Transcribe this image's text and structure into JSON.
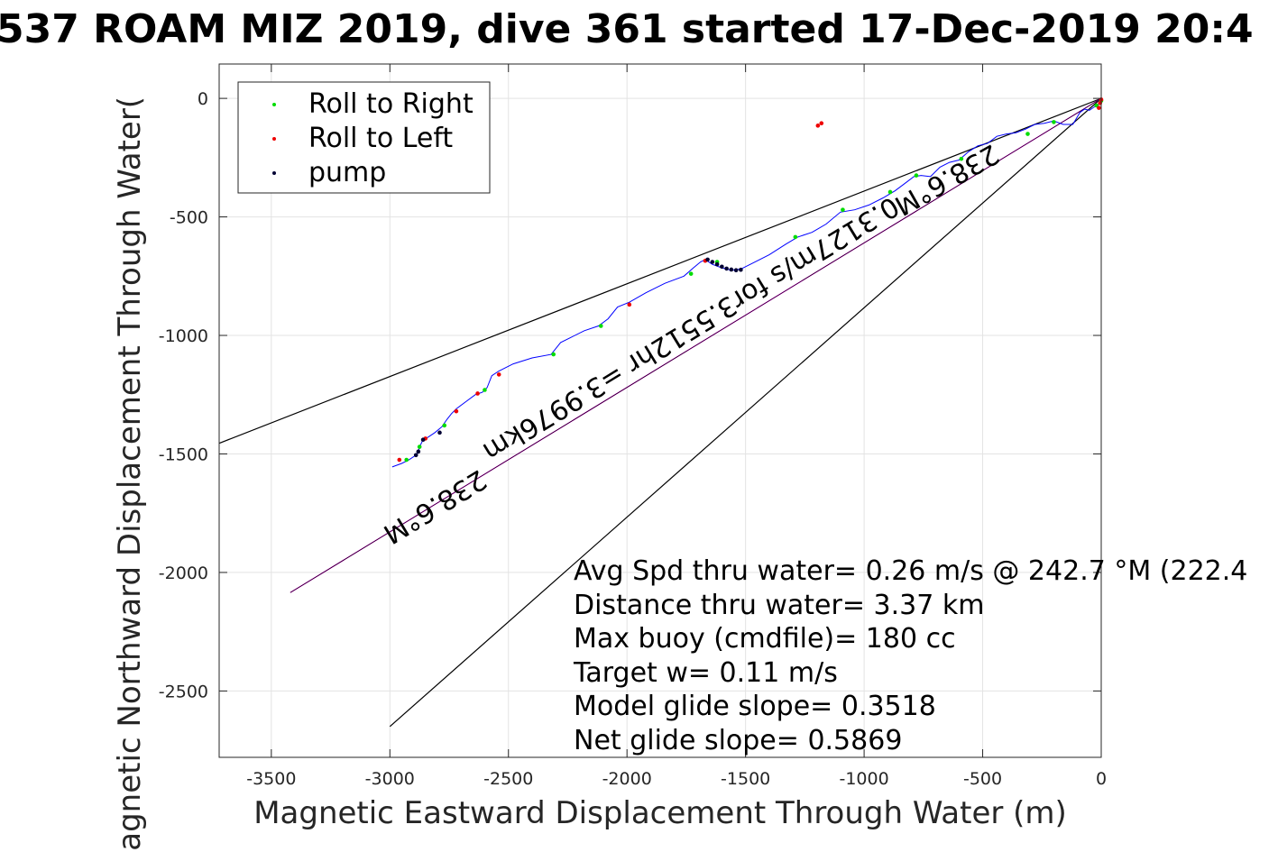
{
  "chart_data": {
    "type": "line",
    "title": "537 ROAM MIZ 2019, dive 361 started 17-Dec-2019 20:4",
    "xlabel": "Magnetic Eastward Displacement Through Water (m)",
    "ylabel": "Magnetic Northward Displacement Through Water(",
    "xlim": [
      -3720,
      0
    ],
    "ylim": [
      -2780,
      145
    ],
    "xticks": [
      -3500,
      -3000,
      -2500,
      -2000,
      -1500,
      -1000,
      -500,
      0
    ],
    "yticks": [
      0,
      -500,
      -1000,
      -1500,
      -2000,
      -2500
    ],
    "xtick_labels": [
      "-3500",
      "-3000",
      "-2500",
      "-2000",
      "-1500",
      "-1000",
      "-500",
      "0"
    ],
    "ytick_labels": [
      "0",
      "-500",
      "-1000",
      "-1500",
      "-2000",
      "-2500"
    ],
    "grid": true,
    "legend_position": "top-left",
    "legend": [
      {
        "label": "Roll to Right",
        "color": "#00dd00"
      },
      {
        "label": "Roll to Left",
        "color": "#ee0000"
      },
      {
        "label": "pump",
        "color": "#000033"
      }
    ],
    "track": {
      "color": "#0000ff",
      "x": [
        -2990,
        -2950,
        -2920,
        -2890,
        -2880,
        -2875,
        -2860,
        -2840,
        -2810,
        -2780,
        -2760,
        -2740,
        -2720,
        -2680,
        -2640,
        -2610,
        -2590,
        -2570,
        -2540,
        -2480,
        -2400,
        -2320,
        -2280,
        -2240,
        -2180,
        -2120,
        -2080,
        -2040,
        -1990,
        -1920,
        -1840,
        -1760,
        -1720,
        -1690,
        -1670,
        -1640,
        -1600,
        -1560,
        -1520,
        -1480,
        -1400,
        -1330,
        -1280,
        -1220,
        -1160,
        -1100,
        -1040,
        -980,
        -920,
        -870,
        -830,
        -790,
        -760,
        -720,
        -680,
        -640,
        -600,
        -560,
        -520,
        -480,
        -440,
        -400,
        -360,
        -320,
        -280,
        -240,
        -200,
        -160,
        -120,
        -90,
        -70,
        -50,
        -35,
        -20,
        -10,
        0
      ],
      "y": [
        -1555,
        -1540,
        -1525,
        -1505,
        -1490,
        -1470,
        -1440,
        -1430,
        -1410,
        -1385,
        -1355,
        -1330,
        -1310,
        -1280,
        -1250,
        -1240,
        -1220,
        -1170,
        -1150,
        -1120,
        -1095,
        -1080,
        -1030,
        -1010,
        -980,
        -960,
        -930,
        -880,
        -860,
        -820,
        -780,
        -750,
        -715,
        -690,
        -680,
        -700,
        -715,
        -725,
        -720,
        -700,
        -660,
        -615,
        -585,
        -565,
        -530,
        -480,
        -470,
        -450,
        -420,
        -390,
        -360,
        -330,
        -325,
        -330,
        -290,
        -270,
        -260,
        -225,
        -200,
        -190,
        -160,
        -150,
        -145,
        -130,
        -110,
        -105,
        -95,
        -110,
        -110,
        -60,
        -45,
        -50,
        -40,
        -30,
        -25,
        0
      ]
    },
    "roll_right_points": {
      "x": [
        -2930,
        -2875,
        -2770,
        -2600,
        -2310,
        -2110,
        -1730,
        -1620,
        -1290,
        -1090,
        -890,
        -780,
        -590,
        -310,
        -200,
        -20,
        0
      ],
      "y": [
        -1525,
        -1470,
        -1380,
        -1230,
        -1080,
        -960,
        -740,
        -690,
        -585,
        -470,
        -395,
        -325,
        -255,
        -150,
        -100,
        -30,
        -10
      ]
    },
    "roll_left_points": {
      "x": [
        -2960,
        -2850,
        -2720,
        -2630,
        -2540,
        -1990,
        -1670,
        -1195,
        -1180,
        -10,
        -5,
        0
      ],
      "y": [
        -1525,
        -1435,
        -1320,
        -1245,
        -1165,
        -870,
        -685,
        -115,
        -105,
        -40,
        -20,
        -5
      ]
    },
    "pump_points": {
      "x": [
        -2890,
        -2880,
        -2790,
        -2860,
        -1660,
        -1640,
        -1620,
        -1600,
        -1580,
        -1560,
        -1540,
        -1520
      ],
      "y": [
        -1505,
        -1490,
        -1410,
        -1440,
        -680,
        -690,
        -700,
        -710,
        -718,
        -722,
        -725,
        -723
      ]
    },
    "guide_lines": [
      {
        "color": "#000000",
        "x": [
          0,
          -3720
        ],
        "y": [
          0,
          -1455
        ]
      },
      {
        "color": "#000000",
        "x": [
          0,
          -3000
        ],
        "y": [
          0,
          -2650
        ]
      },
      {
        "color": "#cc00cc",
        "x": [
          0,
          -3420
        ],
        "y": [
          0,
          -2085
        ]
      },
      {
        "color": "#000000",
        "x": [
          0,
          -3420
        ],
        "y": [
          0,
          -2085
        ]
      }
    ],
    "rotated_labels": [
      {
        "text": "238.6°M",
        "x": -2830,
        "y": -1690
      },
      {
        "text": "238.6°M",
        "x": -670,
        "y": -310
      },
      {
        "text": "0.3127m/s for3.5512hr =3.9976km",
        "x": -1750,
        "y": -940
      }
    ],
    "annotations": [
      "Avg Spd thru water=  0.26 m/s @ 242.7 °M (222.4",
      "Distance thru water=  3.37 km",
      "Max buoy (cmdfile)= 180 cc",
      "Target w= 0.11 m/s",
      "Model glide slope= 0.3518",
      "Net glide slope= 0.5869"
    ]
  }
}
